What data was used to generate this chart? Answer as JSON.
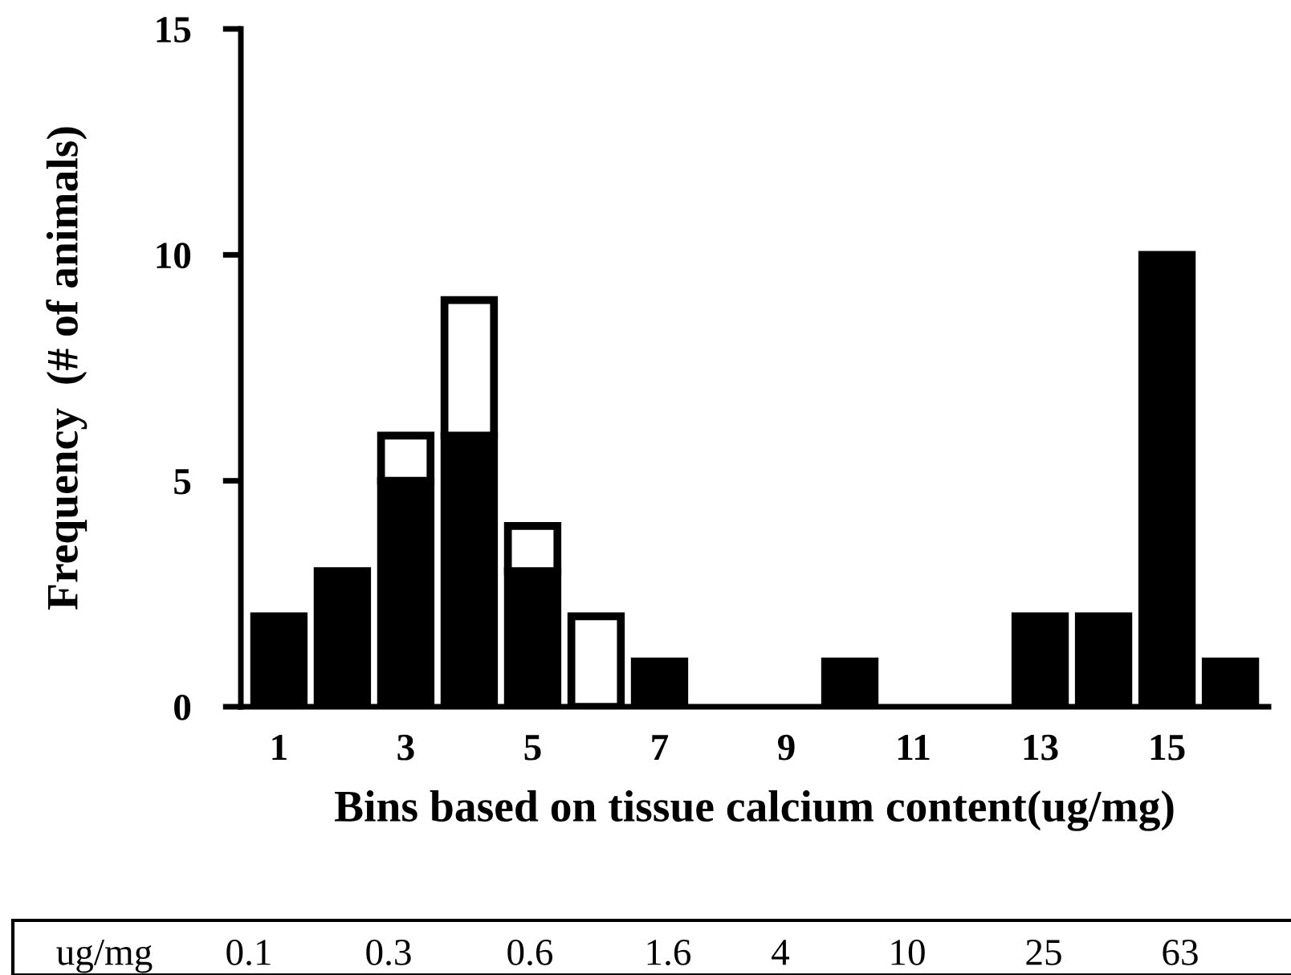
{
  "chart_data": {
    "type": "bar",
    "stacked": true,
    "xlabel": "Bins based on tissue calcium content(ug/mg)",
    "ylabel": "Frequency  (# of animals)",
    "categories": [
      "1",
      null,
      "3",
      null,
      "5",
      null,
      "7",
      null,
      "9",
      null,
      "11",
      null,
      "13",
      null,
      "15",
      null
    ],
    "series": [
      {
        "color": "#000000",
        "values": [
          2,
          3,
          5,
          6,
          3,
          0,
          1,
          0,
          0,
          1,
          0,
          0,
          2,
          2,
          10,
          1
        ]
      },
      {
        "color": "#ffffff",
        "values": [
          0,
          0,
          1,
          3,
          1,
          2,
          0,
          0,
          0,
          0,
          0,
          0,
          0,
          0,
          0,
          0
        ]
      }
    ],
    "ylim": [
      0,
      15
    ],
    "yticks": [
      0,
      5,
      10,
      15
    ],
    "grid": false,
    "annotations": [
      "ug/mg",
      "0.1",
      "0.3",
      "0.6",
      "1.6",
      "4",
      "10",
      "25",
      "63"
    ]
  }
}
